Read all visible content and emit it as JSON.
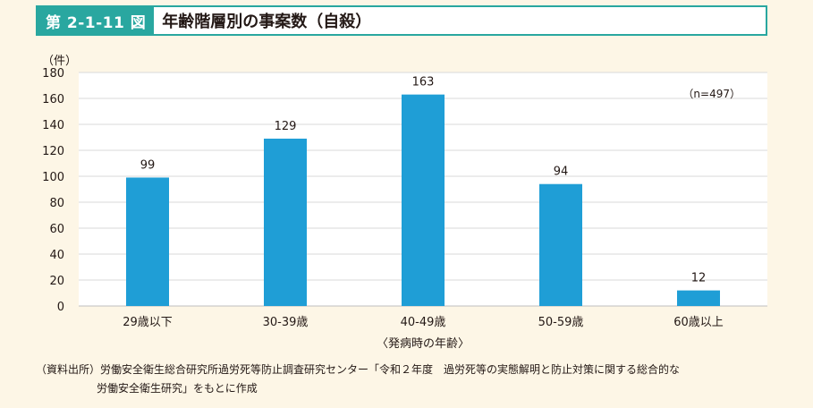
{
  "header": {
    "figure_number": "第 2-1-11 図",
    "title": "年齢階層別の事案数（自殺）"
  },
  "chart_data": {
    "type": "bar",
    "categories": [
      "29歳以下",
      "30-39歳",
      "40-49歳",
      "50-59歳",
      "60歳以上"
    ],
    "values": [
      99,
      129,
      163,
      94,
      12
    ],
    "data_labels": [
      "99",
      "129",
      "163",
      "94",
      "12"
    ],
    "ylabel": "（件）",
    "xlabel": "〈発病時の年齢〉",
    "ylim": [
      0,
      180
    ],
    "yticks": [
      0,
      20,
      40,
      60,
      80,
      100,
      120,
      140,
      160,
      180
    ],
    "ytick_labels": [
      "0",
      "20",
      "40",
      "60",
      "80",
      "100",
      "120",
      "140",
      "160",
      "180"
    ],
    "annotation": "（n=497）",
    "bar_color": "#1f9ed6",
    "grid": true
  },
  "source": {
    "line1": "（資料出所）労働安全衛生総合研究所過労死等防止調査研究センター「令和２年度　過労死等の実態解明と防止対策に関する総合的な",
    "line2": "労働安全衛生研究」をもとに作成"
  }
}
